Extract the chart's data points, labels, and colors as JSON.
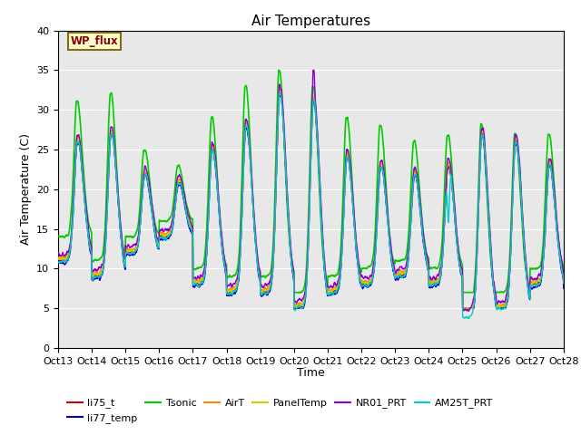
{
  "title": "Air Temperatures",
  "xlabel": "Time",
  "ylabel": "Air Temperature (C)",
  "ylim": [
    0,
    40
  ],
  "yticks": [
    0,
    5,
    10,
    15,
    20,
    25,
    30,
    35,
    40
  ],
  "x_tick_labels": [
    "Oct 13",
    "Oct 14",
    "Oct 15",
    "Oct 16",
    "Oct 17",
    "Oct 18",
    "Oct 19",
    "Oct 20",
    "Oct 21",
    "Oct 22",
    "Oct 23",
    "Oct 24",
    "Oct 25",
    "Oct 26",
    "Oct 27",
    "Oct 28"
  ],
  "series": {
    "li75_t": {
      "color": "#cc0000",
      "lw": 1.0
    },
    "li77_temp": {
      "color": "#0000cc",
      "lw": 1.0
    },
    "Tsonic": {
      "color": "#00cc00",
      "lw": 1.2
    },
    "AirT": {
      "color": "#ff8800",
      "lw": 1.0
    },
    "PanelTemp": {
      "color": "#cccc00",
      "lw": 1.0
    },
    "NR01_PRT": {
      "color": "#8800cc",
      "lw": 1.0
    },
    "AM25T_PRT": {
      "color": "#00cccc",
      "lw": 1.0
    }
  },
  "annotation_text": "WP_flux",
  "plot_bg": "#e8e8e8",
  "grid_color": "#ffffff",
  "title_fontsize": 11,
  "axis_fontsize": 9,
  "tick_fontsize": 8
}
